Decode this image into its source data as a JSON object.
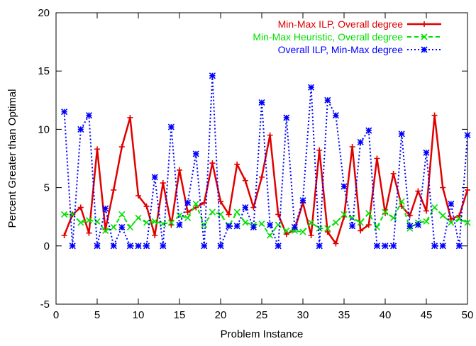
{
  "chart_data": {
    "type": "line",
    "xlabel": "Problem Instance",
    "ylabel": "Percent Greater than  Optimal",
    "xlim": [
      0,
      50
    ],
    "ylim": [
      -5,
      20
    ],
    "xticks": [
      0,
      5,
      10,
      15,
      20,
      25,
      30,
      35,
      40,
      45,
      50
    ],
    "yticks": [
      -5,
      0,
      5,
      10,
      15,
      20
    ],
    "legend_position": "top-right",
    "grid": false,
    "x": [
      1,
      2,
      3,
      4,
      5,
      6,
      7,
      8,
      9,
      10,
      11,
      12,
      13,
      14,
      15,
      16,
      17,
      18,
      19,
      20,
      21,
      22,
      23,
      24,
      25,
      26,
      27,
      28,
      29,
      30,
      31,
      32,
      33,
      34,
      35,
      36,
      37,
      38,
      39,
      40,
      41,
      42,
      43,
      44,
      45,
      46,
      47,
      48,
      49,
      50
    ],
    "series": [
      {
        "name": "Min-Max ILP, Overall degree",
        "color": "#e00000",
        "line_style": "solid",
        "marker": "plus",
        "values": [
          0.9,
          2.7,
          3.3,
          1.1,
          8.3,
          1.4,
          4.8,
          8.5,
          11.0,
          4.3,
          3.4,
          0.9,
          5.4,
          1.8,
          6.5,
          2.9,
          3.3,
          3.7,
          7.1,
          3.8,
          2.7,
          7.0,
          5.6,
          3.3,
          5.9,
          9.5,
          2.7,
          1.0,
          1.4,
          3.7,
          0.9,
          8.2,
          1.2,
          0.2,
          2.5,
          8.5,
          1.3,
          1.8,
          7.5,
          2.8,
          6.2,
          3.4,
          2.6,
          4.7,
          3.0,
          11.2,
          5.0,
          2.3,
          2.6,
          4.8
        ]
      },
      {
        "name": "Min-Max Heuristic, Overall degree",
        "color": "#00e000",
        "line_style": "dashed",
        "marker": "x",
        "values": [
          2.7,
          2.7,
          2.0,
          2.2,
          2.1,
          1.3,
          1.6,
          2.7,
          1.6,
          2.4,
          2.0,
          2.1,
          1.9,
          2.0,
          2.6,
          2.4,
          3.6,
          1.8,
          2.9,
          2.7,
          1.7,
          2.9,
          2.0,
          1.8,
          1.9,
          0.9,
          1.8,
          1.3,
          1.3,
          1.2,
          2.0,
          1.5,
          1.5,
          2.0,
          2.7,
          2.4,
          2.0,
          2.8,
          1.6,
          2.9,
          2.4,
          3.8,
          1.5,
          2.0,
          2.1,
          3.3,
          2.6,
          2.0,
          2.3,
          2.0
        ]
      },
      {
        "name": "Overall ILP, Min-Max degree",
        "color": "#0000ff",
        "line_style": "dotted",
        "marker": "star",
        "values": [
          11.5,
          0.0,
          10.0,
          11.2,
          0.0,
          3.2,
          0.0,
          1.6,
          0.0,
          0.0,
          0.0,
          5.9,
          0.0,
          10.2,
          1.8,
          3.7,
          7.9,
          0.0,
          14.6,
          0.0,
          1.7,
          1.7,
          3.3,
          1.6,
          12.3,
          1.8,
          0.0,
          11.0,
          1.6,
          3.9,
          13.6,
          0.0,
          12.5,
          11.2,
          5.1,
          1.7,
          8.9,
          9.9,
          0.0,
          0.0,
          0.0,
          9.6,
          1.7,
          1.8,
          8.0,
          0.0,
          0.0,
          3.6,
          0.0,
          9.5
        ]
      }
    ]
  }
}
